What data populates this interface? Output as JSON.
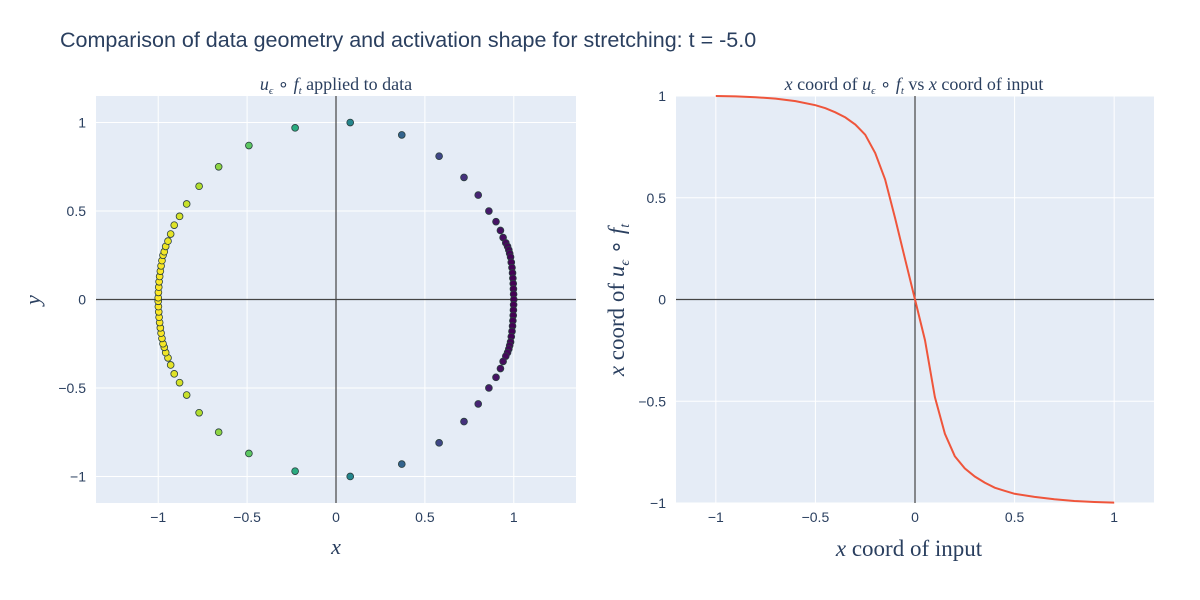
{
  "figure_title": "Comparison of data geometry and activation shape for stretching: t = -5.0",
  "chart_data": [
    {
      "type": "scatter",
      "title": "u_ε ∘ f_t applied to data",
      "xlabel": "x",
      "ylabel": "y",
      "xlim": [
        -1.35,
        1.35
      ],
      "ylim": [
        -1.15,
        1.15
      ],
      "xticks": [
        -1,
        -0.5,
        0,
        0.5,
        1
      ],
      "xtick_labels": [
        "−1",
        "−0.5",
        "0",
        "0.5",
        "1"
      ],
      "yticks": [
        -1,
        -0.5,
        0,
        0.5,
        1
      ],
      "ytick_labels": [
        "−1",
        "−0.5",
        "0",
        "0.5",
        "1"
      ],
      "colorscale": "viridis",
      "points": [
        {
          "x": 0.08,
          "y": 1.0
        },
        {
          "x": 0.37,
          "y": 0.93
        },
        {
          "x": 0.58,
          "y": 0.81
        },
        {
          "x": 0.72,
          "y": 0.69
        },
        {
          "x": 0.8,
          "y": 0.59
        },
        {
          "x": 0.86,
          "y": 0.5
        },
        {
          "x": 0.9,
          "y": 0.44
        },
        {
          "x": 0.925,
          "y": 0.39
        },
        {
          "x": 0.94,
          "y": 0.35
        },
        {
          "x": 0.955,
          "y": 0.32
        },
        {
          "x": 0.965,
          "y": 0.3
        },
        {
          "x": 0.972,
          "y": 0.28
        },
        {
          "x": 0.977,
          "y": 0.26
        },
        {
          "x": 0.982,
          "y": 0.24
        },
        {
          "x": 0.986,
          "y": 0.21
        },
        {
          "x": 0.99,
          "y": 0.18
        },
        {
          "x": 0.993,
          "y": 0.15
        },
        {
          "x": 0.995,
          "y": 0.12
        },
        {
          "x": 0.997,
          "y": 0.09
        },
        {
          "x": 0.998,
          "y": 0.06
        },
        {
          "x": 0.999,
          "y": 0.03
        },
        {
          "x": 1.0,
          "y": 0.0
        },
        {
          "x": 0.999,
          "y": -0.03
        },
        {
          "x": 0.998,
          "y": -0.06
        },
        {
          "x": 0.997,
          "y": -0.09
        },
        {
          "x": 0.995,
          "y": -0.12
        },
        {
          "x": 0.993,
          "y": -0.15
        },
        {
          "x": 0.99,
          "y": -0.18
        },
        {
          "x": 0.986,
          "y": -0.21
        },
        {
          "x": 0.982,
          "y": -0.24
        },
        {
          "x": 0.977,
          "y": -0.26
        },
        {
          "x": 0.972,
          "y": -0.28
        },
        {
          "x": 0.965,
          "y": -0.3
        },
        {
          "x": 0.955,
          "y": -0.32
        },
        {
          "x": 0.94,
          "y": -0.35
        },
        {
          "x": 0.925,
          "y": -0.39
        },
        {
          "x": 0.9,
          "y": -0.44
        },
        {
          "x": 0.86,
          "y": -0.5
        },
        {
          "x": 0.8,
          "y": -0.59
        },
        {
          "x": 0.72,
          "y": -0.69
        },
        {
          "x": 0.58,
          "y": -0.81
        },
        {
          "x": 0.37,
          "y": -0.93
        },
        {
          "x": 0.08,
          "y": -1.0
        },
        {
          "x": -0.23,
          "y": -0.97
        },
        {
          "x": -0.49,
          "y": -0.87
        },
        {
          "x": -0.66,
          "y": -0.75
        },
        {
          "x": -0.77,
          "y": -0.64
        },
        {
          "x": -0.84,
          "y": -0.54
        },
        {
          "x": -0.88,
          "y": -0.47
        },
        {
          "x": -0.91,
          "y": -0.42
        },
        {
          "x": -0.93,
          "y": -0.37
        },
        {
          "x": -0.945,
          "y": -0.33
        },
        {
          "x": -0.958,
          "y": -0.3
        },
        {
          "x": -0.966,
          "y": -0.27
        },
        {
          "x": -0.973,
          "y": -0.25
        },
        {
          "x": -0.979,
          "y": -0.22
        },
        {
          "x": -0.984,
          "y": -0.19
        },
        {
          "x": -0.988,
          "y": -0.16
        },
        {
          "x": -0.992,
          "y": -0.13
        },
        {
          "x": -0.995,
          "y": -0.1
        },
        {
          "x": -0.997,
          "y": -0.07
        },
        {
          "x": -0.999,
          "y": -0.04
        },
        {
          "x": -1.0,
          "y": -0.01
        },
        {
          "x": -1.0,
          "y": 0.01
        },
        {
          "x": -0.999,
          "y": 0.04
        },
        {
          "x": -0.997,
          "y": 0.07
        },
        {
          "x": -0.995,
          "y": 0.1
        },
        {
          "x": -0.992,
          "y": 0.13
        },
        {
          "x": -0.988,
          "y": 0.16
        },
        {
          "x": -0.984,
          "y": 0.19
        },
        {
          "x": -0.979,
          "y": 0.22
        },
        {
          "x": -0.973,
          "y": 0.25
        },
        {
          "x": -0.966,
          "y": 0.27
        },
        {
          "x": -0.958,
          "y": 0.3
        },
        {
          "x": -0.945,
          "y": 0.33
        },
        {
          "x": -0.93,
          "y": 0.37
        },
        {
          "x": -0.91,
          "y": 0.42
        },
        {
          "x": -0.88,
          "y": 0.47
        },
        {
          "x": -0.84,
          "y": 0.54
        },
        {
          "x": -0.77,
          "y": 0.64
        },
        {
          "x": -0.66,
          "y": 0.75
        },
        {
          "x": -0.49,
          "y": 0.87
        },
        {
          "x": -0.23,
          "y": 0.97
        }
      ]
    },
    {
      "type": "line",
      "title": "x coord of u_ε ∘ f_t vs x coord of input",
      "xlabel": "x coord of input",
      "ylabel": "x coord of u_ε ∘ f_t",
      "xlim": [
        -1.2,
        1.2
      ],
      "ylim": [
        -1.0,
        1.0
      ],
      "xticks": [
        -1,
        -0.5,
        0,
        0.5,
        1
      ],
      "xtick_labels": [
        "−1",
        "−0.5",
        "0",
        "0.5",
        "1"
      ],
      "yticks": [
        -1,
        -0.5,
        0,
        0.5,
        1
      ],
      "ytick_labels": [
        "−1",
        "−0.5",
        "0",
        "0.5",
        "1"
      ],
      "line_color": "#ef553b",
      "x": [
        -1.0,
        -0.9,
        -0.8,
        -0.7,
        -0.6,
        -0.5,
        -0.45,
        -0.4,
        -0.35,
        -0.3,
        -0.25,
        -0.2,
        -0.15,
        -0.1,
        -0.05,
        0.0,
        0.05,
        0.1,
        0.15,
        0.2,
        0.25,
        0.3,
        0.35,
        0.4,
        0.45,
        0.5,
        0.6,
        0.7,
        0.8,
        0.9,
        1.0
      ],
      "y": [
        1.0,
        0.998,
        0.994,
        0.987,
        0.975,
        0.955,
        0.94,
        0.92,
        0.895,
        0.86,
        0.81,
        0.72,
        0.59,
        0.4,
        0.2,
        0.0,
        -0.2,
        -0.48,
        -0.66,
        -0.77,
        -0.83,
        -0.87,
        -0.9,
        -0.925,
        -0.94,
        -0.955,
        -0.97,
        -0.982,
        -0.99,
        -0.995,
        -0.998
      ]
    }
  ]
}
